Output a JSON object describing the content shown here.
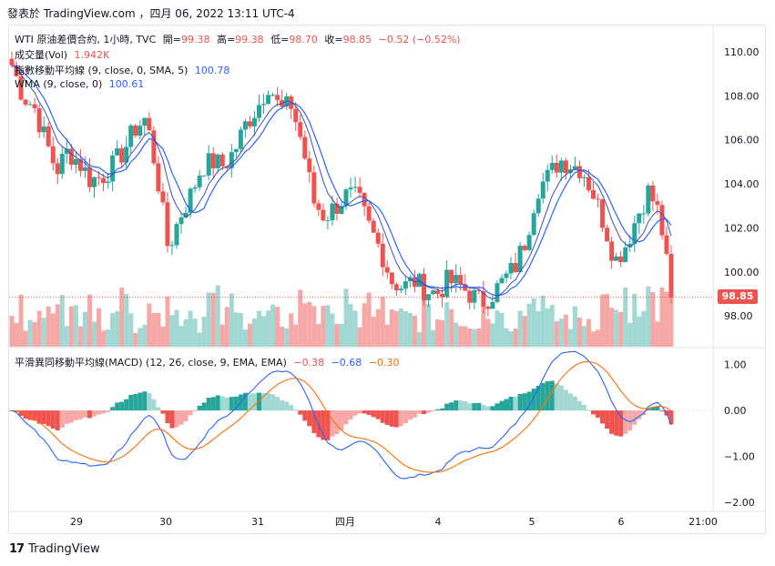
{
  "header": {
    "text": "發表於 TradingView.com ，四月 06, 2022 13:11 UTC-4"
  },
  "legend_main": {
    "symbol": "WTI 原油差價合約, 1小時, TVC",
    "open_label": "開=",
    "open": "99.38",
    "high_label": "高=",
    "high": "99.38",
    "low_label": "低=",
    "low": "98.70",
    "close_label": "收=",
    "close": "98.85",
    "change": "−0.52 (−0.52%)"
  },
  "legend_vol": {
    "label": "成交量(Vol)",
    "value": "1.942K"
  },
  "legend_sma": {
    "label": "指數移動平均線 (9, close, 0, SMA, 5)",
    "value": "100.78"
  },
  "legend_wma": {
    "label": "WMA (9, close, 0)",
    "value": "100.61"
  },
  "legend_macd": {
    "label": "平滑異同移動平均線(MACD) (12, 26, close, 9, EMA, EMA)",
    "v1": "−0.38",
    "v2": "−0.68",
    "v3": "−0.30"
  },
  "price_tag": "98.85",
  "footer": {
    "brand": "TradingView",
    "logo": "17"
  },
  "colors": {
    "up": "#26a69a",
    "down": "#ef5350",
    "sma": "#2962ff",
    "macd": "#2962ff",
    "signal": "#ff6d00"
  },
  "chart_data": [
    {
      "type": "candlestick",
      "title": "WTI 原油差價合約, 1小時, TVC",
      "x_ticks": [
        "29",
        "30",
        "31",
        "四月",
        "4",
        "5",
        "6",
        "21:00"
      ],
      "y_ticks": [
        "110.00",
        "108.00",
        "106.00",
        "104.00",
        "102.00",
        "100.00",
        "98.00"
      ],
      "ylim": [
        96.6,
        111.2
      ],
      "close_path": [
        109.4,
        108.0,
        107.5,
        106.0,
        104.6,
        105.5,
        105.0,
        104.2,
        104.3,
        104.8,
        105.5,
        106.5,
        107.0,
        104.4,
        101.0,
        102.5,
        103.5,
        104.8,
        105.0,
        104.8,
        105.6,
        106.8,
        107.5,
        108.6,
        107.3,
        107.6,
        105.8,
        103.2,
        102.5,
        103.0,
        103.5,
        103.3,
        102.0,
        101.0,
        99.6,
        99.3,
        99.6,
        99.2,
        99.0,
        99.6,
        99.4,
        99.0,
        98.6,
        99.0,
        99.6,
        100.2,
        101.5,
        103.8,
        104.3,
        105.1,
        104.9,
        104.7,
        103.6,
        102.2,
        100.5,
        101.3,
        102.6,
        103.7,
        102.5,
        98.85
      ],
      "sma_last": 100.78,
      "wma_last": 100.61
    },
    {
      "type": "bar",
      "title": "成交量(Vol)",
      "last": 1.942,
      "unit": "K"
    },
    {
      "type": "line",
      "title": "平滑異同移動平均線(MACD)",
      "y_ticks": [
        "1.00",
        "0.00",
        "−1.00",
        "−2.00"
      ],
      "ylim": [
        -2.2,
        1.35
      ],
      "macd_last": -0.68,
      "signal_last": -0.3,
      "hist_last": -0.38
    }
  ]
}
